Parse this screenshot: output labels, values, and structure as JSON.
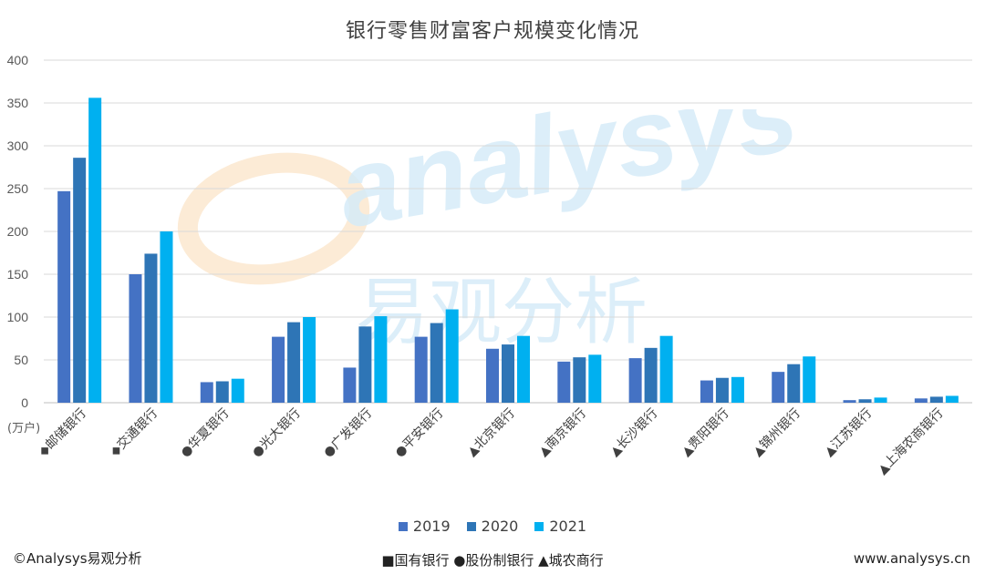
{
  "title": "银行零售财富客户规模变化情况",
  "unit_label": "(万户)",
  "footer": {
    "copyright": "©Analysys易观分析",
    "note": "■国有银行 ●股份制银行 ▲城农商行",
    "website": "www.analysys.cn"
  },
  "watermark": {
    "brand": "analysys",
    "cn": "易观分析"
  },
  "colors": {
    "2019": "#4472C4",
    "2020": "#2E75B6",
    "2021": "#00B0F0"
  },
  "chart_data": {
    "type": "bar",
    "title": "银行零售财富客户规模变化情况",
    "ylabel": "(万户)",
    "ylim": [
      0,
      400
    ],
    "yticks": [
      0,
      50,
      100,
      150,
      200,
      250,
      300,
      350,
      400
    ],
    "grid": true,
    "legend_position": "bottom",
    "categories": [
      "◆邮储银行",
      "◆交通银行",
      "●华夏银行",
      "●光大银行",
      "●广发银行",
      "●平安银行",
      "▲北京银行",
      "▲南京银行",
      "▲长沙银行",
      "▲贵阳银行",
      "▲锦州银行",
      "▲江苏银行",
      "▲上海农商银行"
    ],
    "series": [
      {
        "name": "2019",
        "values": [
          247,
          150,
          24,
          77,
          41,
          77,
          63,
          48,
          52,
          26,
          36,
          3,
          5
        ]
      },
      {
        "name": "2020",
        "values": [
          286,
          174,
          25,
          94,
          89,
          93,
          68,
          53,
          64,
          29,
          45,
          4,
          7
        ]
      },
      {
        "name": "2021",
        "values": [
          356,
          200,
          28,
          100,
          101,
          109,
          78,
          56,
          78,
          30,
          54,
          6,
          8
        ]
      }
    ]
  }
}
